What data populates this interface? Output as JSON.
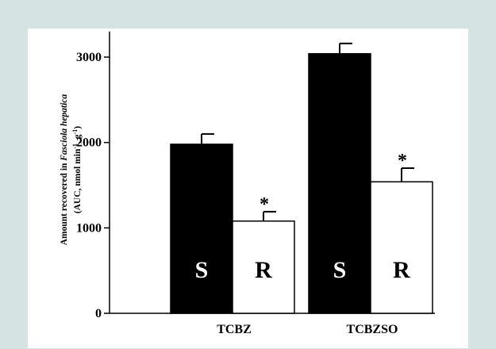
{
  "chart_data": {
    "type": "bar",
    "title": "",
    "categories": [
      "TCBZ",
      "TCBZSO"
    ],
    "ylabel_line1_prefix": "Amount recovered in ",
    "ylabel_line1_species": "Fasciola hepatica",
    "ylabel_line2_a": "(AUC, nmol min",
    "ylabel_line2_sup1": "-1",
    "ylabel_line2_b": ", g",
    "ylabel_line2_sup2": "-1",
    "ylabel_line2_c": ")",
    "ylim": [
      0,
      3300
    ],
    "yticks": [
      0,
      1000,
      2000,
      3000
    ],
    "series": [
      {
        "name": "S",
        "color": "#000000",
        "values": [
          1980,
          3040
        ],
        "errors": [
          120,
          120
        ],
        "significant": [
          false,
          false
        ]
      },
      {
        "name": "R",
        "color": "#ffffff",
        "values": [
          1080,
          1540
        ],
        "errors": [
          110,
          160
        ],
        "significant": [
          true,
          true
        ]
      }
    ],
    "significance_marker": "*"
  }
}
